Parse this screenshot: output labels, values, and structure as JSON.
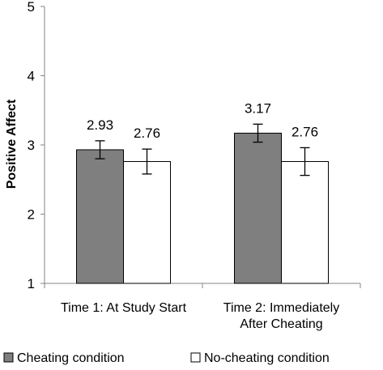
{
  "chart_data": {
    "type": "bar",
    "title": "",
    "xlabel": "",
    "ylabel": "Positive Affect",
    "ylim": [
      1,
      5
    ],
    "yticks": [
      "1",
      "2",
      "3",
      "4",
      "5"
    ],
    "grid": false,
    "legend_position": "bottom",
    "categories": [
      [
        "Time 1: At Study Start"
      ],
      [
        "Time 2: Immediately",
        "After Cheating"
      ]
    ],
    "series": [
      {
        "name": "Cheating condition",
        "color": "#7f7f7f",
        "values": [
          2.93,
          3.17
        ],
        "labels": [
          "2.93",
          "3.17"
        ],
        "error": [
          0.13,
          0.13
        ]
      },
      {
        "name": "No-cheating condition",
        "color": "#ffffff",
        "values": [
          2.76,
          2.76
        ],
        "labels": [
          "2.76",
          "2.76"
        ],
        "error": [
          0.18,
          0.2
        ]
      }
    ]
  }
}
